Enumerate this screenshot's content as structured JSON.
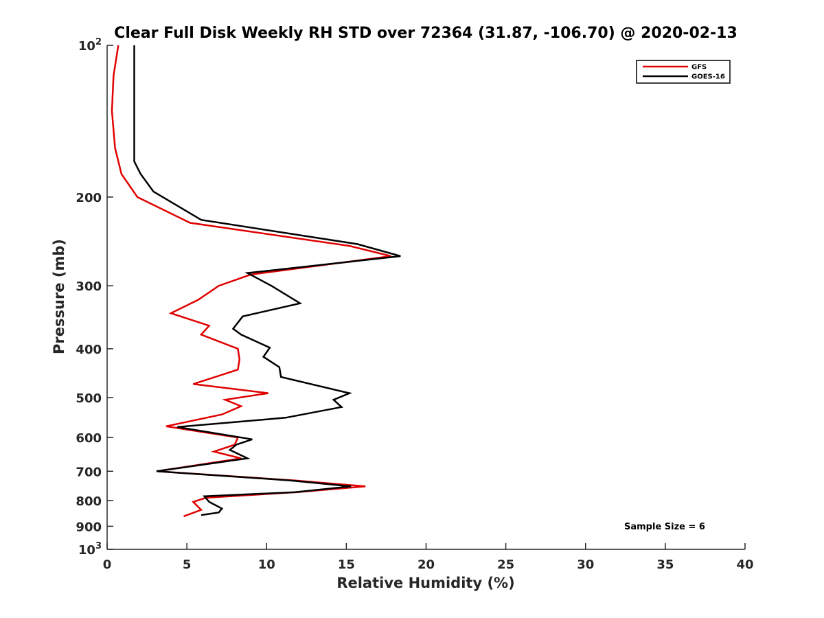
{
  "chart_data": {
    "type": "line",
    "title": "Clear Full Disk Weekly RH STD over 72364 (31.87, -106.70) @ 2020-02-13",
    "xlabel": "Relative Humidity (%)",
    "ylabel": "Pressure (mb)",
    "xlim": [
      0,
      40
    ],
    "ylim": [
      100,
      1000
    ],
    "y_scale": "log",
    "y_direction": "reversed",
    "x_ticks": [
      "0",
      "5",
      "10",
      "15",
      "20",
      "25",
      "30",
      "35",
      "40"
    ],
    "y_ticks": [
      {
        "value": 100,
        "label": "10",
        "sup": "2"
      },
      {
        "value": 200,
        "label": "200",
        "sup": ""
      },
      {
        "value": 300,
        "label": "300",
        "sup": ""
      },
      {
        "value": 400,
        "label": "400",
        "sup": ""
      },
      {
        "value": 500,
        "label": "500",
        "sup": ""
      },
      {
        "value": 600,
        "label": "600",
        "sup": ""
      },
      {
        "value": 700,
        "label": "700",
        "sup": ""
      },
      {
        "value": 800,
        "label": "800",
        "sup": ""
      },
      {
        "value": 900,
        "label": "900",
        "sup": ""
      },
      {
        "value": 1000,
        "label": "10",
        "sup": "3"
      }
    ],
    "legend_position": "top-right",
    "grid": false,
    "annotation": "Sample Size = 6",
    "series": [
      {
        "name": "GFS",
        "color": "#e00000",
        "points": [
          [
            0.7,
            100
          ],
          [
            0.4,
            115
          ],
          [
            0.3,
            135
          ],
          [
            0.5,
            160
          ],
          [
            0.9,
            180
          ],
          [
            1.9,
            200
          ],
          [
            5.2,
            225
          ],
          [
            15.2,
            250
          ],
          [
            17.8,
            262
          ],
          [
            9.0,
            285
          ],
          [
            7.0,
            300
          ],
          [
            5.7,
            320
          ],
          [
            4.0,
            340
          ],
          [
            6.4,
            360
          ],
          [
            5.9,
            375
          ],
          [
            8.2,
            400
          ],
          [
            8.3,
            420
          ],
          [
            8.2,
            440
          ],
          [
            5.4,
            470
          ],
          [
            10.1,
            490
          ],
          [
            7.4,
            505
          ],
          [
            8.4,
            520
          ],
          [
            7.2,
            540
          ],
          [
            3.7,
            570
          ],
          [
            8.2,
            600
          ],
          [
            8.0,
            620
          ],
          [
            6.7,
            640
          ],
          [
            8.4,
            660
          ],
          [
            3.1,
            700
          ],
          [
            11.8,
            730
          ],
          [
            16.2,
            750
          ],
          [
            11.9,
            770
          ],
          [
            6.2,
            790
          ],
          [
            5.4,
            805
          ],
          [
            5.9,
            835
          ],
          [
            4.8,
            860
          ]
        ]
      },
      {
        "name": "GOES-16",
        "color": "#000000",
        "points": [
          [
            1.7,
            100
          ],
          [
            1.7,
            120
          ],
          [
            1.7,
            140
          ],
          [
            1.7,
            170
          ],
          [
            2.1,
            180
          ],
          [
            2.9,
            195
          ],
          [
            5.9,
            222
          ],
          [
            15.7,
            248
          ],
          [
            18.4,
            262
          ],
          [
            8.8,
            283
          ],
          [
            10.3,
            300
          ],
          [
            12.1,
            325
          ],
          [
            8.5,
            345
          ],
          [
            7.9,
            365
          ],
          [
            8.4,
            375
          ],
          [
            10.2,
            398
          ],
          [
            9.8,
            415
          ],
          [
            10.8,
            435
          ],
          [
            10.9,
            455
          ],
          [
            15.2,
            490
          ],
          [
            14.2,
            505
          ],
          [
            14.7,
            522
          ],
          [
            11.2,
            548
          ],
          [
            4.4,
            572
          ],
          [
            9.1,
            605
          ],
          [
            8.1,
            620
          ],
          [
            7.7,
            635
          ],
          [
            8.8,
            660
          ],
          [
            3.1,
            700
          ],
          [
            11.5,
            730
          ],
          [
            15.3,
            750
          ],
          [
            11.8,
            770
          ],
          [
            6.1,
            785
          ],
          [
            6.4,
            805
          ],
          [
            7.2,
            830
          ],
          [
            7.0,
            845
          ],
          [
            5.9,
            855
          ]
        ]
      }
    ]
  }
}
